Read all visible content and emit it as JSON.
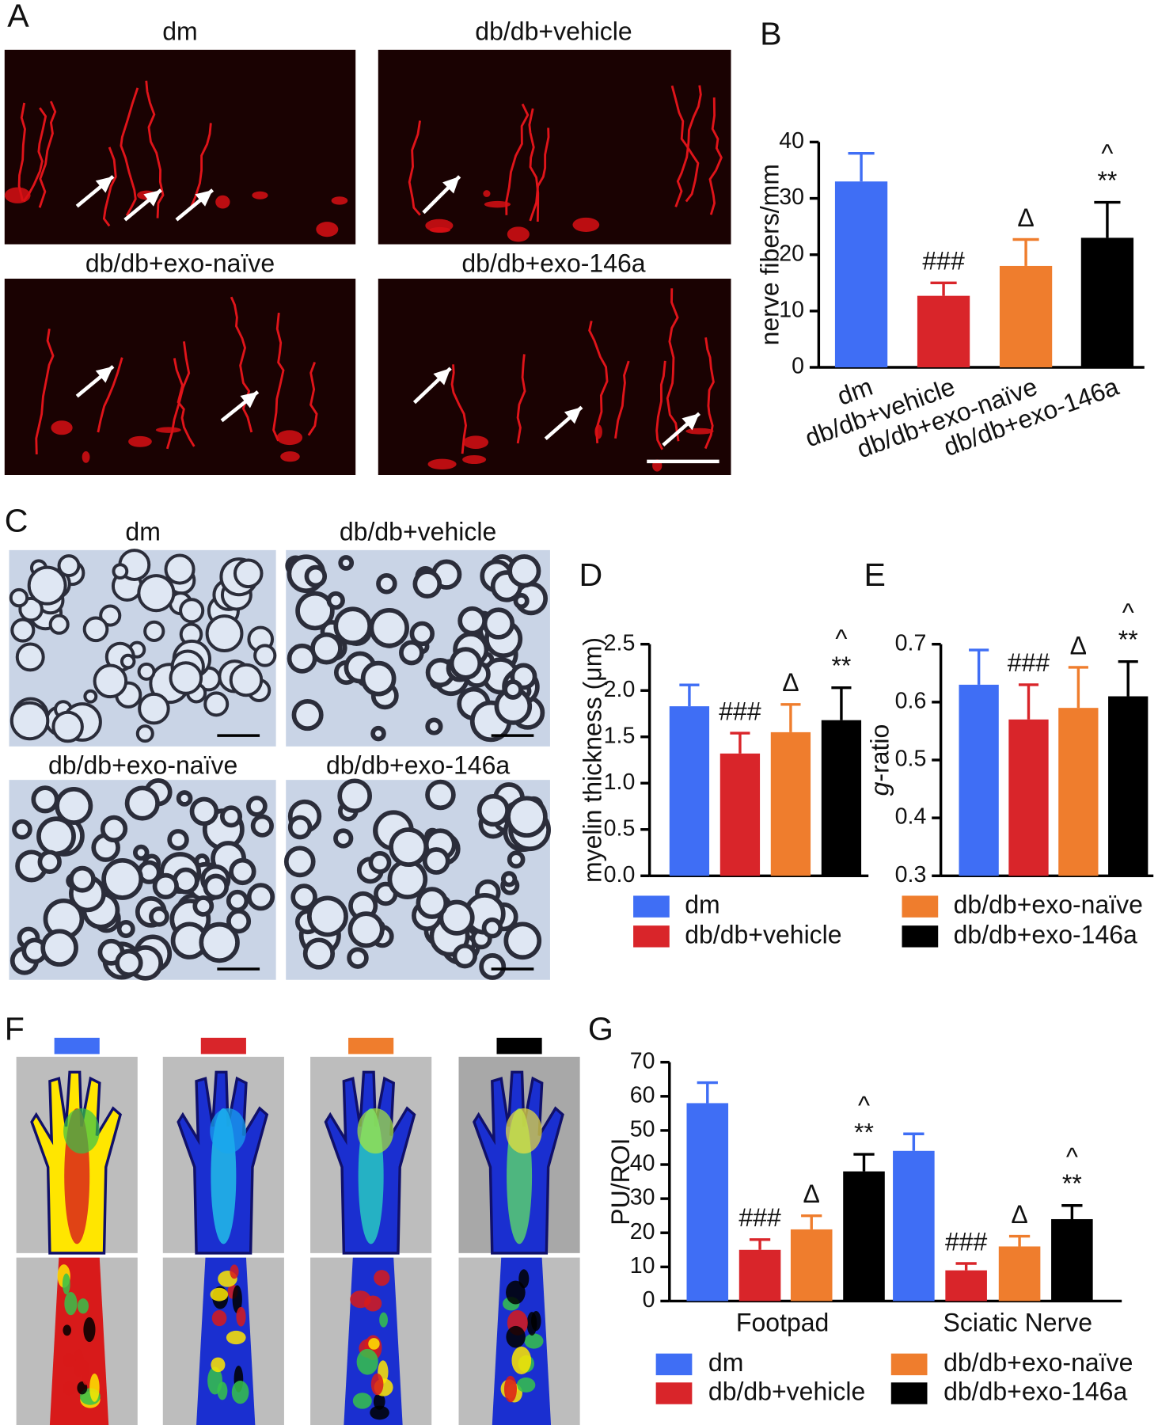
{
  "panels": {
    "letters": [
      "A",
      "B",
      "C",
      "D",
      "E",
      "F",
      "G"
    ],
    "A_labels": [
      "dm",
      "db/db+vehicle",
      "db/db+exo-naïve",
      "db/db+exo-146a"
    ],
    "C_labels": [
      "dm",
      "db/db+vehicle",
      "db/db+exo-naïve",
      "db/db+exo-146a"
    ],
    "F_colors": [
      "#3f6ef5",
      "#d9252a",
      "#ef7d2d",
      "#000000"
    ]
  },
  "chart_data": [
    {
      "type": "bar",
      "ylabel": "nerve fibers/mm",
      "categories": [
        "dm",
        "db/db+vehicle",
        "db/db+exo-naïve",
        "db/db+exo-146a"
      ],
      "values": [
        33,
        12.7,
        18,
        23
      ],
      "errors": [
        5,
        2.3,
        4.7,
        6.3
      ],
      "colors": [
        "#3f6ef5",
        "#d9252a",
        "#ef7d2d",
        "#000000"
      ],
      "significance": [
        null,
        "###",
        "Δ",
        "**"
      ],
      "significance_top": [
        null,
        null,
        null,
        "^"
      ],
      "ylim": [
        0,
        40
      ],
      "yticks": [
        0,
        10,
        20,
        30,
        40
      ]
    },
    {
      "type": "bar",
      "ylabel": "myelin thickness (μm)",
      "values": [
        1.83,
        1.32,
        1.55,
        1.68
      ],
      "errors": [
        0.23,
        0.22,
        0.3,
        0.35
      ],
      "colors": [
        "#3f6ef5",
        "#d9252a",
        "#ef7d2d",
        "#000000"
      ],
      "significance": [
        null,
        "###",
        "Δ",
        "**"
      ],
      "significance_top": [
        null,
        null,
        null,
        "^"
      ],
      "ylim": [
        0,
        2.5
      ],
      "yticks": [
        {
          "value": 0,
          "label": "0.0"
        },
        0.5,
        {
          "value": 1,
          "label": "1.0"
        },
        1.5,
        {
          "value": 2,
          "label": "2.0"
        },
        2.5
      ],
      "legend": [
        {
          "name": "dm",
          "color": "#3f6ef5"
        },
        {
          "name": "db/db+vehicle",
          "color": "#d9252a"
        }
      ]
    },
    {
      "type": "bar",
      "ylabel": "g-ratio",
      "values": [
        0.63,
        0.57,
        0.59,
        0.61
      ],
      "errors": [
        0.06,
        0.06,
        0.07,
        0.06
      ],
      "colors": [
        "#3f6ef5",
        "#d9252a",
        "#ef7d2d",
        "#000000"
      ],
      "significance": [
        null,
        "###",
        "Δ",
        "**"
      ],
      "significance_top": [
        null,
        null,
        null,
        "^"
      ],
      "ylim": [
        0.3,
        0.7
      ],
      "yticks": [
        0.3,
        0.4,
        0.5,
        0.6,
        0.7
      ],
      "legend": [
        {
          "name": "db/db+exo-naïve",
          "color": "#ef7d2d"
        },
        {
          "name": "db/db+exo-146a",
          "color": "#000000"
        }
      ]
    },
    {
      "type": "grouped_bar",
      "ylabel": "PU/ROI",
      "categories": [
        "Footpad",
        "Sciatic Nerve"
      ],
      "series": [
        {
          "name": "dm",
          "color": "#3f6ef5",
          "values": [
            58,
            44
          ],
          "errors": [
            6,
            5
          ],
          "significance": [
            null,
            null
          ],
          "significance_top": [
            null,
            null
          ]
        },
        {
          "name": "db/db+vehicle",
          "color": "#d9252a",
          "values": [
            15,
            9
          ],
          "errors": [
            3,
            2
          ],
          "significance": [
            "###",
            "###"
          ],
          "significance_top": [
            null,
            null
          ]
        },
        {
          "name": "db/db+exo-naïve",
          "color": "#ef7d2d",
          "values": [
            21,
            16
          ],
          "errors": [
            4,
            3
          ],
          "significance": [
            "Δ",
            "Δ"
          ],
          "significance_top": [
            null,
            null
          ]
        },
        {
          "name": "db/db+exo-146a",
          "color": "#000000",
          "values": [
            38,
            24
          ],
          "errors": [
            5,
            4
          ],
          "significance": [
            "**",
            "**"
          ],
          "significance_top": [
            "^",
            "^"
          ]
        }
      ],
      "ylim": [
        0,
        70
      ],
      "yticks": [
        0,
        10,
        20,
        30,
        40,
        50,
        60,
        70
      ]
    }
  ]
}
